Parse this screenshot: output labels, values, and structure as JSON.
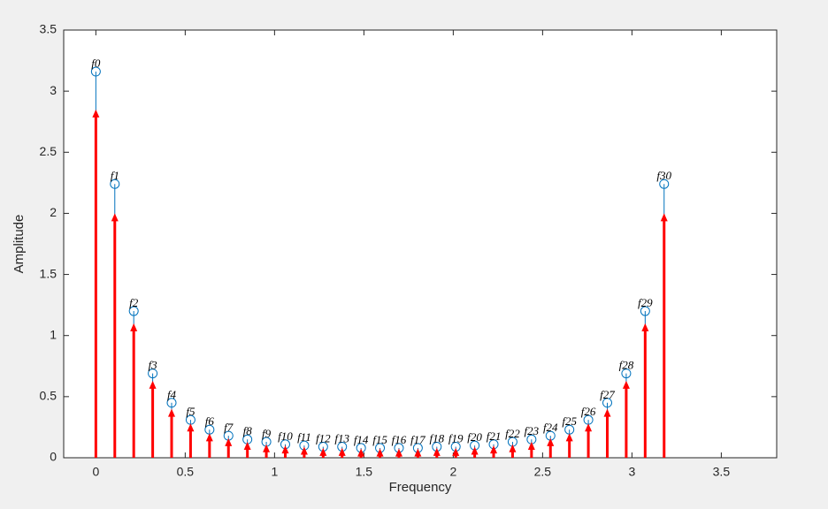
{
  "chart_data": {
    "type": "stem",
    "x_label": "Frequency",
    "y_label": "Amplitude",
    "x": [
      0,
      0.106,
      0.212,
      0.318,
      0.424,
      0.53,
      0.636,
      0.742,
      0.848,
      0.954,
      1.06,
      1.166,
      1.272,
      1.378,
      1.484,
      1.59,
      1.696,
      1.802,
      1.908,
      2.014,
      2.12,
      2.226,
      2.332,
      2.438,
      2.544,
      2.65,
      2.756,
      2.862,
      2.968,
      3.074,
      3.18
    ],
    "point_labels": [
      "f0",
      "f1",
      "f2",
      "f3",
      "f4",
      "f5",
      "f6",
      "f7",
      "f8",
      "f9",
      "f10",
      "f11",
      "f12",
      "f13",
      "f14",
      "f15",
      "f16",
      "f17",
      "f18",
      "f19",
      "f20",
      "f21",
      "f22",
      "f23",
      "f24",
      "f25",
      "f26",
      "f27",
      "f28",
      "f29",
      "f30"
    ],
    "series": [
      {
        "color": "#0072bd",
        "marker": "circle",
        "values": [
          3.16,
          2.24,
          1.2,
          0.69,
          0.45,
          0.31,
          0.23,
          0.18,
          0.15,
          0.13,
          0.11,
          0.1,
          0.09,
          0.09,
          0.08,
          0.08,
          0.08,
          0.08,
          0.09,
          0.09,
          0.1,
          0.11,
          0.13,
          0.15,
          0.18,
          0.23,
          0.31,
          0.45,
          0.69,
          1.2,
          2.24
        ]
      },
      {
        "color": "#ff0000",
        "marker": "arrow",
        "values": [
          2.85,
          2.0,
          1.1,
          0.63,
          0.4,
          0.28,
          0.2,
          0.16,
          0.13,
          0.11,
          0.1,
          0.09,
          0.08,
          0.08,
          0.075,
          0.075,
          0.075,
          0.075,
          0.08,
          0.08,
          0.09,
          0.1,
          0.11,
          0.13,
          0.16,
          0.2,
          0.28,
          0.4,
          0.63,
          1.1,
          2.0
        ]
      }
    ],
    "xlim": [
      -0.18,
      3.81
    ],
    "ylim": [
      0,
      3.5
    ],
    "xticks": [
      0,
      0.5,
      1,
      1.5,
      2,
      2.5,
      3,
      3.5
    ],
    "yticks": [
      0,
      0.5,
      1,
      1.5,
      2,
      2.5,
      3,
      3.5
    ]
  }
}
